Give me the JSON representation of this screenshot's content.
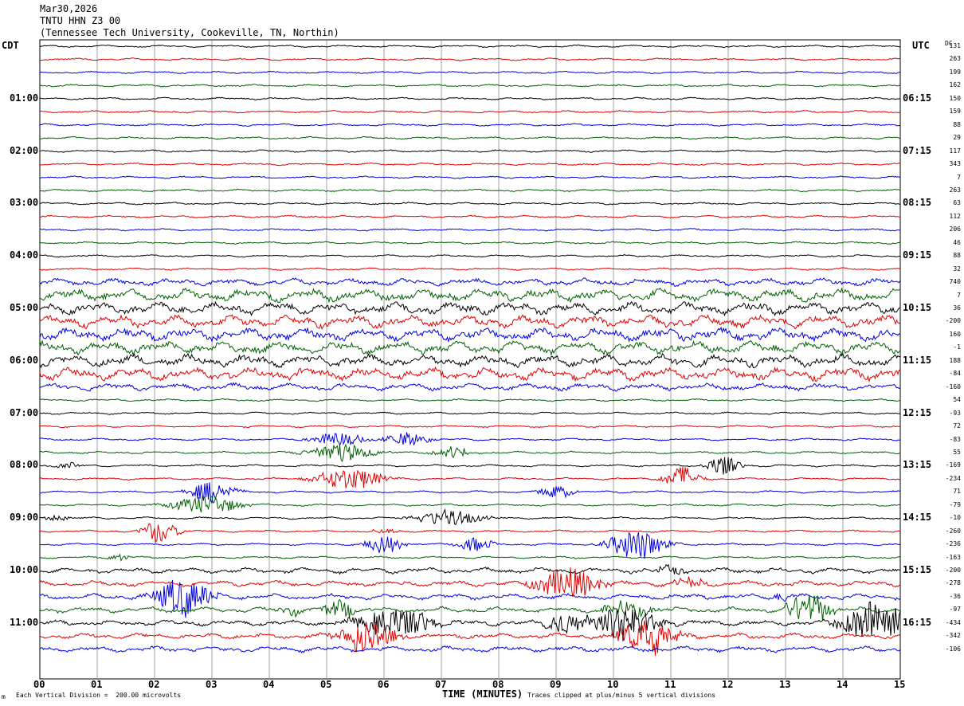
{
  "header": {
    "date": "Mar30,2026",
    "station": "TNTU HHN Z3 00",
    "location": "(Tennessee Tech University, Cookeville, TN, Northin)"
  },
  "left_tz": "CDT",
  "right_tz": "UTC",
  "dc_header": "DC",
  "footer": {
    "mark": "m",
    "scale": "Each Vertical Division =  200.00 microvolts",
    "clip": "Traces clipped at plus/minus 5 vertical divisions"
  },
  "colors": {
    "trace_cycle": [
      "#000000",
      "#e00000",
      "#0000e0",
      "#006000"
    ],
    "grid": "#888888"
  },
  "chart_data": {
    "type": "line",
    "title": "TNTU HHN Z3 00",
    "xlabel": "TIME (MINUTES)",
    "ylabel": "",
    "xlim": [
      0,
      15
    ],
    "x_ticks": [
      "00",
      "01",
      "02",
      "03",
      "04",
      "05",
      "06",
      "07",
      "08",
      "09",
      "10",
      "11",
      "12",
      "13",
      "14",
      "15"
    ],
    "left_labels": [
      "01:00",
      "02:00",
      "03:00",
      "04:00",
      "05:00",
      "06:00",
      "07:00",
      "08:00",
      "09:00",
      "10:00",
      "11:00"
    ],
    "right_labels": [
      "06:15",
      "07:15",
      "08:15",
      "09:15",
      "10:15",
      "11:15",
      "12:15",
      "13:15",
      "14:15",
      "15:15",
      "16:15"
    ],
    "dc_offsets": [
      "131",
      "263",
      "199",
      "162",
      "150",
      "159",
      "88",
      "29",
      "117",
      "343",
      "7",
      "263",
      "63",
      "112",
      "206",
      "46",
      "88",
      "32",
      "740",
      "7",
      "36",
      "-200",
      "160",
      "-1",
      "188",
      "-84",
      "-160",
      "54",
      "-93",
      "72",
      "-83",
      "55",
      "-169",
      "-234",
      "71",
      "-79",
      "-10",
      "-260",
      "-236",
      "-163",
      "-200",
      "-278",
      "-36",
      "-97",
      "-434",
      "-342",
      "-106"
    ],
    "trace_count": 47,
    "minutes_per_trace": 15,
    "grid": true
  }
}
